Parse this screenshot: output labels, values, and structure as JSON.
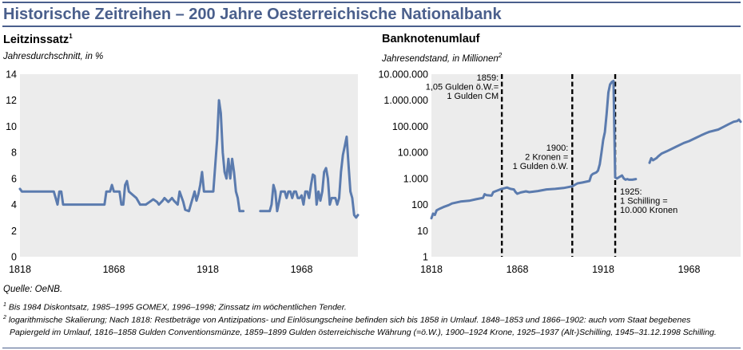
{
  "header": {
    "title": "Historische Zeitreihen – 200 Jahre Oesterreichische Nationalbank"
  },
  "left_chart": {
    "title": "Leitzinssatz",
    "title_sup": "1",
    "subtitle": "Jahresdurchschnitt, in %"
  },
  "right_chart": {
    "title": "Banknotenumlauf",
    "subtitle": "Jahresendstand, in Millionen",
    "subtitle_sup": "2"
  },
  "footer": {
    "source": "Quelle: OeNB.",
    "fn1_mark": "1",
    "fn1": "Bis 1984 Diskontsatz, 1985–1995 GOMEX, 1996–1998; Zinssatz im wöchentlichen Tender.",
    "fn2_mark": "2",
    "fn2_line1": "logarithmische Skalierung; Nach 1818: Restbeträge von Antizipations- und Einlösungscheine befinden sich bis 1858 in Umlauf. 1848–1853 und 1866–1902: auch vom Staat begebenes",
    "fn2_line2": "Papiergeld im Umlauf, 1816–1858 Gulden Conventionsmünze, 1859–1899 Gulden österreichische Währung (=ö.W.), 1900–1924 Krone, 1925–1937 (Alt-)Schilling, 1945–31.12.1998 Schilling."
  },
  "colors": {
    "series": "#5b7bae",
    "plot_bg": "#ececec",
    "accent": "#4a5f8c"
  },
  "chart_data": [
    {
      "type": "line",
      "title": "Leitzinssatz",
      "ylabel": "Jahresdurchschnitt, in %",
      "xlim": [
        1818,
        1998
      ],
      "ylim": [
        0,
        14
      ],
      "x_ticks": [
        1818,
        1868,
        1918,
        1968
      ],
      "y_ticks": [
        0,
        2,
        4,
        6,
        8,
        10,
        12,
        14
      ],
      "grid": false,
      "series": [
        {
          "segments": [
            [
              [
                1818,
                5.2
              ],
              [
                1819,
                5
              ],
              [
                1830,
                5
              ],
              [
                1836,
                5
              ],
              [
                1837,
                4.5
              ],
              [
                1838,
                4
              ],
              [
                1839,
                5
              ],
              [
                1840,
                5
              ],
              [
                1841,
                4
              ],
              [
                1863,
                4
              ],
              [
                1864,
                5
              ],
              [
                1866,
                5
              ],
              [
                1867,
                5.5
              ],
              [
                1868,
                5
              ],
              [
                1871,
                5
              ],
              [
                1872,
                4
              ],
              [
                1873,
                4
              ],
              [
                1874,
                5.5
              ],
              [
                1875,
                5.8
              ],
              [
                1876,
                5
              ],
              [
                1880,
                4.5
              ],
              [
                1882,
                4
              ],
              [
                1885,
                4
              ],
              [
                1887,
                4.2
              ],
              [
                1889,
                4.4
              ],
              [
                1891,
                4.2
              ],
              [
                1892,
                4
              ],
              [
                1894,
                4.3
              ],
              [
                1895,
                4.5
              ],
              [
                1897,
                4.2
              ],
              [
                1899,
                4.5
              ],
              [
                1900,
                4.3
              ],
              [
                1902,
                4
              ],
              [
                1903,
                5
              ],
              [
                1905,
                4.2
              ],
              [
                1906,
                3.6
              ],
              [
                1908,
                3.5
              ],
              [
                1909,
                4
              ],
              [
                1910,
                4.5
              ],
              [
                1911,
                5
              ],
              [
                1912,
                4.3
              ],
              [
                1913,
                4.8
              ],
              [
                1914,
                5.5
              ],
              [
                1915,
                6.5
              ],
              [
                1916,
                5
              ],
              [
                1918,
                5
              ],
              [
                1920,
                5
              ],
              [
                1921,
                5
              ],
              [
                1922,
                7
              ],
              [
                1923,
                9
              ],
              [
                1924,
                12
              ],
              [
                1925,
                11
              ],
              [
                1926,
                8
              ],
              [
                1927,
                6.5
              ],
              [
                1928,
                6
              ],
              [
                1929,
                7.5
              ],
              [
                1930,
                6
              ],
              [
                1931,
                7.5
              ],
              [
                1932,
                6.5
              ],
              [
                1933,
                5
              ],
              [
                1934,
                4.5
              ],
              [
                1935,
                3.5
              ],
              [
                1937,
                3.5
              ]
            ],
            [
              [
                1946,
                3.5
              ],
              [
                1951,
                3.5
              ],
              [
                1952,
                4
              ],
              [
                1953,
                5.5
              ],
              [
                1954,
                5
              ],
              [
                1955,
                3.5
              ],
              [
                1956,
                4.2
              ],
              [
                1957,
                5
              ],
              [
                1959,
                5
              ],
              [
                1960,
                4.5
              ],
              [
                1961,
                5
              ],
              [
                1962,
                5
              ],
              [
                1963,
                4.5
              ],
              [
                1964,
                5
              ],
              [
                1965,
                5
              ],
              [
                1966,
                4.5
              ],
              [
                1967,
                4.5
              ],
              [
                1968,
                4.7
              ],
              [
                1969,
                4
              ],
              [
                1970,
                5
              ],
              [
                1971,
                5
              ],
              [
                1972,
                4.5
              ],
              [
                1973,
                5.5
              ],
              [
                1974,
                6.3
              ],
              [
                1975,
                6.2
              ],
              [
                1976,
                4
              ],
              [
                1977,
                5
              ],
              [
                1978,
                4.3
              ],
              [
                1979,
                5
              ],
              [
                1980,
                6.5
              ],
              [
                1981,
                6.8
              ],
              [
                1982,
                6
              ],
              [
                1983,
                4
              ],
              [
                1984,
                4.5
              ],
              [
                1985,
                4.5
              ],
              [
                1986,
                4.5
              ],
              [
                1987,
                4
              ],
              [
                1988,
                4.5
              ],
              [
                1989,
                6.5
              ],
              [
                1990,
                7.8
              ],
              [
                1991,
                8.5
              ],
              [
                1992,
                9.2
              ],
              [
                1993,
                7
              ],
              [
                1994,
                5
              ],
              [
                1995,
                4.5
              ],
              [
                1996,
                3.2
              ],
              [
                1997,
                3
              ],
              [
                1998,
                3.2
              ]
            ]
          ]
        }
      ]
    },
    {
      "type": "line",
      "title": "Banknotenumlauf",
      "ylabel": "Jahresendstand, in Millionen",
      "yscale": "log",
      "xlim": [
        1818,
        1998
      ],
      "ylim": [
        1,
        10000000
      ],
      "x_ticks": [
        1818,
        1868,
        1918,
        1968
      ],
      "y_ticks": [
        1,
        10,
        100,
        1000,
        10000,
        100000,
        1000000,
        10000000
      ],
      "y_tick_labels": [
        "1",
        "10",
        "100",
        "1.000",
        "10.000",
        "100.000",
        "1.000.000",
        "10.000.000"
      ],
      "grid": false,
      "series": [
        {
          "segments": [
            [
              [
                1818,
                30
              ],
              [
                1819,
                45
              ],
              [
                1820,
                40
              ],
              [
                1821,
                60
              ],
              [
                1823,
                70
              ],
              [
                1825,
                80
              ],
              [
                1828,
                95
              ],
              [
                1830,
                110
              ],
              [
                1835,
                130
              ],
              [
                1840,
                140
              ],
              [
                1844,
                160
              ],
              [
                1848,
                180
              ],
              [
                1849,
                250
              ],
              [
                1850,
                230
              ],
              [
                1853,
                220
              ],
              [
                1854,
                300
              ],
              [
                1858,
                380
              ],
              [
                1859,
                400
              ],
              [
                1862,
                450
              ],
              [
                1864,
                400
              ],
              [
                1866,
                380
              ],
              [
                1867,
                300
              ],
              [
                1868,
                260
              ],
              [
                1870,
                290
              ],
              [
                1873,
                320
              ],
              [
                1875,
                300
              ],
              [
                1880,
                330
              ],
              [
                1885,
                380
              ],
              [
                1890,
                400
              ],
              [
                1895,
                430
              ],
              [
                1900,
                500
              ],
              [
                1903,
                650
              ],
              [
                1906,
                700
              ],
              [
                1910,
                800
              ],
              [
                1911,
                1300
              ],
              [
                1912,
                1500
              ],
              [
                1914,
                1700
              ],
              [
                1915,
                2000
              ],
              [
                1916,
                3500
              ],
              [
                1917,
                10000
              ],
              [
                1918,
                30000
              ],
              [
                1919,
                60000
              ],
              [
                1920,
                300000
              ],
              [
                1921,
                2000000
              ],
              [
                1922,
                4000000
              ],
              [
                1923,
                5000000
              ],
              [
                1924,
                5500000
              ],
              [
                1925,
                1100
              ],
              [
                1926,
                1000
              ],
              [
                1927,
                1100
              ],
              [
                1928,
                1200
              ],
              [
                1929,
                1300
              ],
              [
                1930,
                1000
              ],
              [
                1931,
                900
              ],
              [
                1932,
                950
              ],
              [
                1933,
                900
              ],
              [
                1935,
                900
              ],
              [
                1937,
                950
              ]
            ],
            [
              [
                1945,
                4000
              ],
              [
                1946,
                6000
              ],
              [
                1947,
                5000
              ],
              [
                1949,
                6000
              ],
              [
                1950,
                7000
              ],
              [
                1952,
                9000
              ],
              [
                1955,
                11000
              ],
              [
                1960,
                16000
              ],
              [
                1965,
                23000
              ],
              [
                1968,
                27000
              ],
              [
                1972,
                36000
              ],
              [
                1975,
                45000
              ],
              [
                1978,
                55000
              ],
              [
                1980,
                62000
              ],
              [
                1985,
                75000
              ],
              [
                1988,
                95000
              ],
              [
                1991,
                120000
              ],
              [
                1994,
                150000
              ],
              [
                1996,
                160000
              ],
              [
                1997,
                180000
              ],
              [
                1998,
                150000
              ]
            ]
          ]
        }
      ],
      "annotations": [
        {
          "x": 1859,
          "lines": [
            "1859:",
            "1,05 Gulden ö.W.=",
            "1 Gulden CM"
          ]
        },
        {
          "x": 1900,
          "lines": [
            "1900:",
            "2 Kronen =",
            "1 Gulden ö.W."
          ]
        },
        {
          "x": 1925,
          "lines": [
            "1925:",
            "1 Schilling =",
            "10.000 Kronen"
          ]
        }
      ]
    }
  ]
}
